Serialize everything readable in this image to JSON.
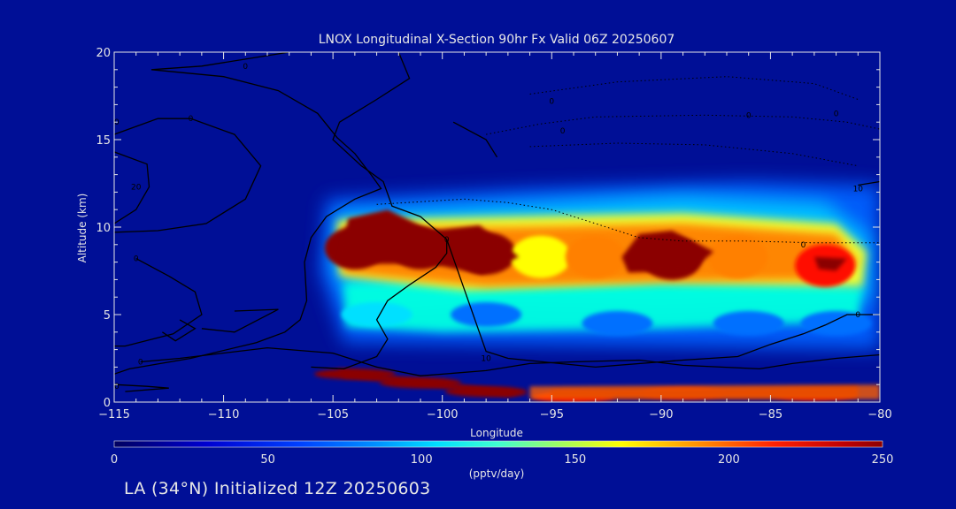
{
  "chart_data": {
    "type": "heatmap",
    "title": "LNOX Longitudinal X-Section 90hr  Fx Valid 06Z 20250607",
    "xlabel": "Longitude",
    "ylabel": "Altitude (km)",
    "xlim": [
      -115,
      -80
    ],
    "ylim": [
      0,
      20
    ],
    "xticks": [
      -115,
      -110,
      -105,
      -100,
      -95,
      -90,
      -85,
      -80
    ],
    "xtick_labels": [
      "−115",
      "−110",
      "−105",
      "−100",
      "−95",
      "−90",
      "−85",
      "−80"
    ],
    "yticks": [
      0,
      5,
      10,
      15,
      20
    ],
    "ytick_labels": [
      "0",
      "5",
      "10",
      "15",
      "20"
    ],
    "colorbar": {
      "label": "(pptv/day)",
      "range": [
        0,
        250
      ],
      "ticks": [
        "0",
        "50",
        "100",
        "150",
        "200",
        "250"
      ],
      "colors": [
        "#0000a0",
        "#0000ff",
        "#00a8ff",
        "#00ffff",
        "#80ff80",
        "#ffff00",
        "#ff8000",
        "#ff0000",
        "#8b0000"
      ]
    },
    "fields": [
      {
        "name": "upper band",
        "values": [
          {
            "lon": -104,
            "alt": 8.8,
            "value": 250
          },
          {
            "lon": -101,
            "alt": 8.8,
            "value": 250
          },
          {
            "lon": -98,
            "alt": 8.5,
            "value": 250
          },
          {
            "lon": -95.5,
            "alt": 8.3,
            "value": 170
          },
          {
            "lon": -93,
            "alt": 8.3,
            "value": 200
          },
          {
            "lon": -89.5,
            "alt": 8.2,
            "value": 250
          },
          {
            "lon": -86.5,
            "alt": 8.3,
            "value": 190
          },
          {
            "lon": -82.5,
            "alt": 7.8,
            "value": 230
          }
        ]
      },
      {
        "name": "mid band",
        "values": [
          {
            "lon": -103,
            "alt": 5.0,
            "value": 100
          },
          {
            "lon": -98,
            "alt": 5.0,
            "value": 90
          },
          {
            "lon": -92,
            "alt": 4.5,
            "value": 80
          },
          {
            "lon": -86,
            "alt": 4.5,
            "value": 80
          },
          {
            "lon": -82,
            "alt": 4.5,
            "value": 70
          }
        ]
      },
      {
        "name": "surface band",
        "values": [
          {
            "lon": -104,
            "alt": 1.6,
            "value": 250
          },
          {
            "lon": -101,
            "alt": 1.1,
            "value": 250
          },
          {
            "lon": -98,
            "alt": 0.6,
            "value": 250
          },
          {
            "lon": -94,
            "alt": 0.3,
            "value": 220
          },
          {
            "lon": -89,
            "alt": 0.5,
            "value": 240
          },
          {
            "lon": -83,
            "alt": 0.4,
            "value": 220
          }
        ]
      }
    ],
    "contours": [
      {
        "label": "0",
        "values": [
          [
            -113.5,
            19.0
          ],
          [
            -111,
            19.2
          ],
          [
            -106,
            18.5
          ]
        ]
      },
      {
        "label": "10",
        "values": [
          [
            -115,
            15.6
          ],
          [
            -113,
            16.0
          ],
          [
            -111.5,
            16.2
          ]
        ]
      },
      {
        "label": "20",
        "values": [
          [
            -114,
            12.3
          ],
          [
            -114,
            8.2
          ]
        ]
      },
      {
        "label": "0",
        "values": [
          [
            -99.8,
            9.3
          ],
          [
            -98,
            2.5
          ],
          [
            -81,
            5.0
          ]
        ]
      },
      {
        "label": "0",
        "values": [
          [
            -115,
            0.8
          ],
          [
            -113,
            0.9
          ]
        ]
      },
      {
        "label": "10",
        "values": [
          [
            -81,
            12.2
          ],
          [
            -83,
            12.3
          ]
        ]
      },
      {
        "label": "20",
        "values": [
          [
            -113.8,
            2.3
          ]
        ]
      }
    ],
    "contour_labels": [
      "0",
      "10",
      "20",
      "0",
      "0",
      "0",
      "10",
      "0",
      "20",
      "0",
      "10",
      "0",
      "0",
      "0",
      "0",
      "0"
    ],
    "grid": false
  },
  "footer": {
    "text": "LA (34°N) Initialized 12Z 20250603"
  }
}
